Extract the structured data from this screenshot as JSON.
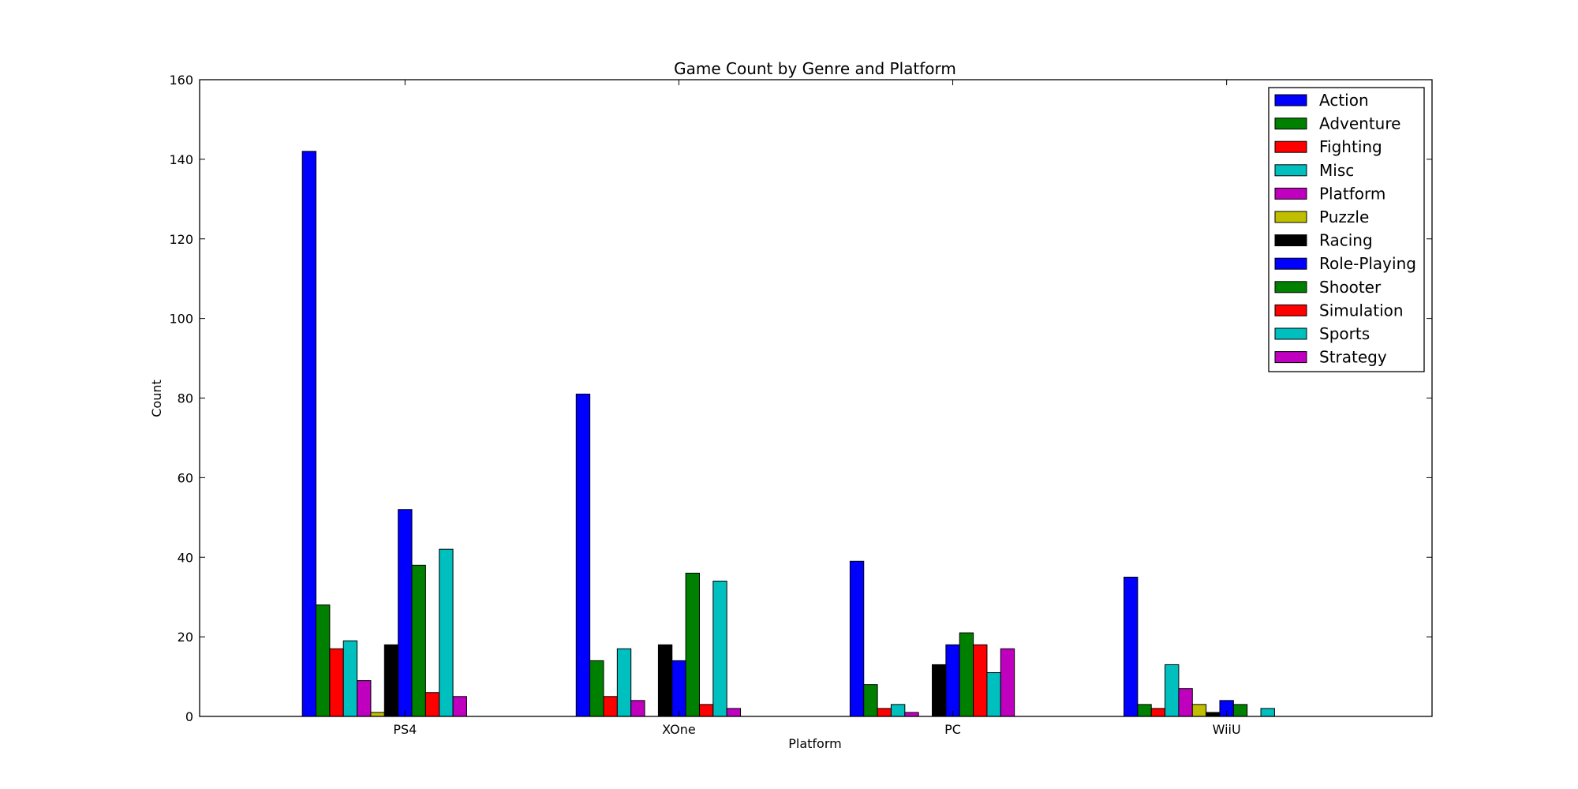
{
  "chart_data": {
    "type": "bar",
    "title": "Game Count by Genre and Platform",
    "xlabel": "Platform",
    "ylabel": "Count",
    "ylim": [
      0,
      160
    ],
    "yticks": [
      0,
      20,
      40,
      60,
      80,
      100,
      120,
      140,
      160
    ],
    "grid": false,
    "legend_position": "top-right",
    "categories": [
      "PS4",
      "XOne",
      "PC",
      "WiiU"
    ],
    "series": [
      {
        "name": "Action",
        "color": "#0000ff",
        "values": [
          142,
          81,
          39,
          35
        ]
      },
      {
        "name": "Adventure",
        "color": "#008000",
        "values": [
          28,
          14,
          8,
          3
        ]
      },
      {
        "name": "Fighting",
        "color": "#ff0000",
        "values": [
          17,
          5,
          2,
          2
        ]
      },
      {
        "name": "Misc",
        "color": "#00bfbf",
        "values": [
          19,
          17,
          3,
          13
        ]
      },
      {
        "name": "Platform",
        "color": "#bf00bf",
        "values": [
          9,
          4,
          1,
          7
        ]
      },
      {
        "name": "Puzzle",
        "color": "#bfbf00",
        "values": [
          1,
          0,
          0,
          3
        ]
      },
      {
        "name": "Racing",
        "color": "#000000",
        "values": [
          18,
          18,
          13,
          1
        ]
      },
      {
        "name": "Role-Playing",
        "color": "#0000ff",
        "values": [
          52,
          14,
          18,
          4
        ]
      },
      {
        "name": "Shooter",
        "color": "#008000",
        "values": [
          38,
          36,
          21,
          3
        ]
      },
      {
        "name": "Simulation",
        "color": "#ff0000",
        "values": [
          6,
          3,
          18,
          0
        ]
      },
      {
        "name": "Sports",
        "color": "#00bfbf",
        "values": [
          42,
          34,
          11,
          2
        ]
      },
      {
        "name": "Strategy",
        "color": "#bf00bf",
        "values": [
          5,
          2,
          17,
          0
        ]
      }
    ]
  }
}
